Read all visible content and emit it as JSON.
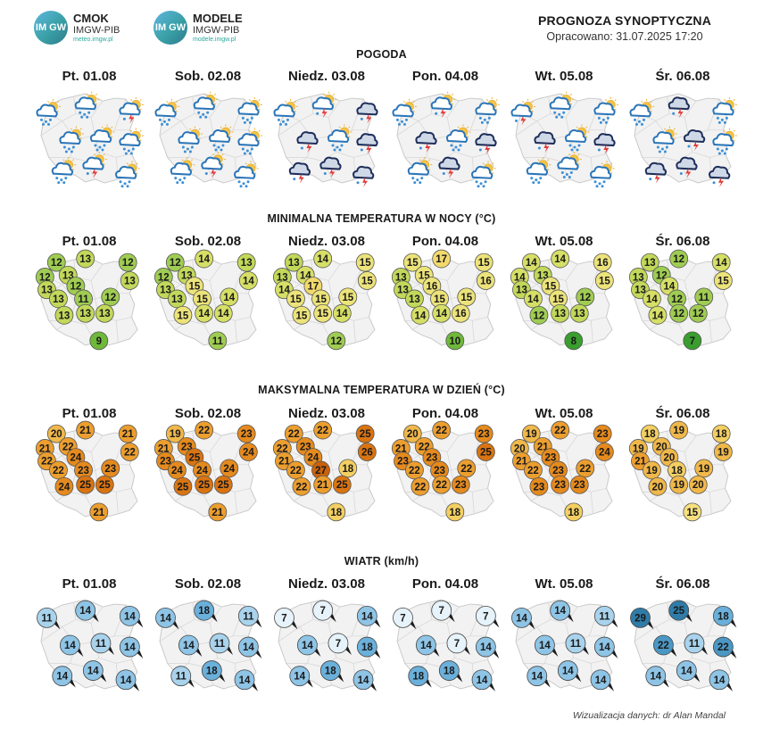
{
  "logos": [
    {
      "circle": "IM GW",
      "title": "CMOK",
      "sub": "IMGW-PIB",
      "url": "meteo.imgw.pl"
    },
    {
      "circle": "IM GW",
      "title": "MODELE",
      "sub": "IMGW-PIB",
      "url": "modele.imgw.pl"
    }
  ],
  "header": {
    "title": "PROGNOZA SYNOPTYCZNA",
    "date": "Opracowano: 31.07.2025 17:20"
  },
  "days": [
    "Pt. 01.08",
    "Sob. 02.08",
    "Niedz. 03.08",
    "Pon. 04.08",
    "Wt. 05.08",
    "Śr. 06.08"
  ],
  "sections": {
    "weather": "POGODA",
    "tmin": "MINIMALNA TEMPERATURA W NOCY (°C)",
    "tmax": "MAKSYMALNA TEMPERATURA W DZIEŃ (°C)",
    "wind": "WIATR (km/h)"
  },
  "weather_icons": [
    [
      "rain-sun",
      "rain-sun",
      "storm-sun",
      "rain-sun",
      "rain-sun",
      "rain-sun",
      "rain-sun",
      "storm-sun",
      "rain-sun"
    ],
    [
      "rain-sun",
      "rain-sun",
      "rain-sun",
      "rain-sun",
      "rain-sun",
      "rain-sun",
      "rain-sun",
      "storm-sun",
      "rain-sun"
    ],
    [
      "rain-sun",
      "storm-sun",
      "storm",
      "storm",
      "rain-sun",
      "storm",
      "storm",
      "storm",
      "storm"
    ],
    [
      "rain-sun",
      "storm-sun",
      "rain-sun",
      "storm",
      "rain-sun",
      "storm",
      "rain-sun",
      "storm",
      "rain-sun"
    ],
    [
      "storm-sun",
      "rain-sun",
      "rain-sun",
      "storm",
      "rain-sun",
      "storm",
      "rain-sun",
      "rain-sun",
      "rain-sun"
    ],
    [
      "rain-sun",
      "storm",
      "rain-sun",
      "rain-sun",
      "storm",
      "rain-sun",
      "storm",
      "storm",
      "storm"
    ]
  ],
  "tmin": [
    [
      12,
      13,
      12,
      12,
      13,
      13,
      13,
      12,
      13,
      11,
      12,
      13,
      13,
      13,
      9
    ],
    [
      12,
      14,
      13,
      12,
      13,
      14,
      13,
      15,
      13,
      15,
      14,
      15,
      14,
      14,
      11
    ],
    [
      13,
      14,
      15,
      13,
      14,
      15,
      14,
      17,
      15,
      15,
      15,
      15,
      15,
      14,
      12
    ],
    [
      15,
      17,
      15,
      13,
      15,
      16,
      13,
      16,
      13,
      15,
      15,
      14,
      14,
      16,
      10
    ],
    [
      14,
      14,
      16,
      14,
      13,
      15,
      13,
      15,
      14,
      15,
      12,
      12,
      13,
      13,
      8
    ],
    [
      13,
      12,
      14,
      13,
      12,
      15,
      13,
      14,
      14,
      12,
      11,
      14,
      12,
      12,
      7
    ]
  ],
  "tmax": [
    [
      20,
      21,
      21,
      21,
      22,
      22,
      22,
      24,
      22,
      23,
      23,
      24,
      25,
      25,
      21
    ],
    [
      19,
      22,
      23,
      21,
      23,
      24,
      23,
      25,
      24,
      24,
      24,
      25,
      25,
      25,
      21
    ],
    [
      22,
      22,
      25,
      22,
      23,
      26,
      21,
      24,
      22,
      27,
      18,
      22,
      21,
      25,
      18
    ],
    [
      20,
      22,
      23,
      21,
      22,
      25,
      23,
      23,
      22,
      23,
      22,
      22,
      22,
      23,
      18
    ],
    [
      19,
      22,
      23,
      20,
      21,
      24,
      21,
      23,
      22,
      23,
      22,
      23,
      23,
      23,
      18
    ],
    [
      18,
      19,
      18,
      19,
      20,
      19,
      21,
      20,
      19,
      18,
      19,
      20,
      19,
      20,
      15
    ]
  ],
  "wind": [
    [
      11,
      14,
      14,
      14,
      11,
      14,
      14,
      14,
      14
    ],
    [
      14,
      18,
      11,
      14,
      11,
      14,
      11,
      18,
      14
    ],
    [
      7,
      7,
      14,
      14,
      7,
      18,
      14,
      18,
      14
    ],
    [
      7,
      7,
      7,
      14,
      7,
      14,
      18,
      18,
      14
    ],
    [
      14,
      14,
      11,
      14,
      11,
      14,
      14,
      14,
      14
    ],
    [
      29,
      25,
      18,
      22,
      11,
      22,
      14,
      14,
      14
    ]
  ],
  "footer": "Wizualizacja danych: dr Alan Mandal"
}
